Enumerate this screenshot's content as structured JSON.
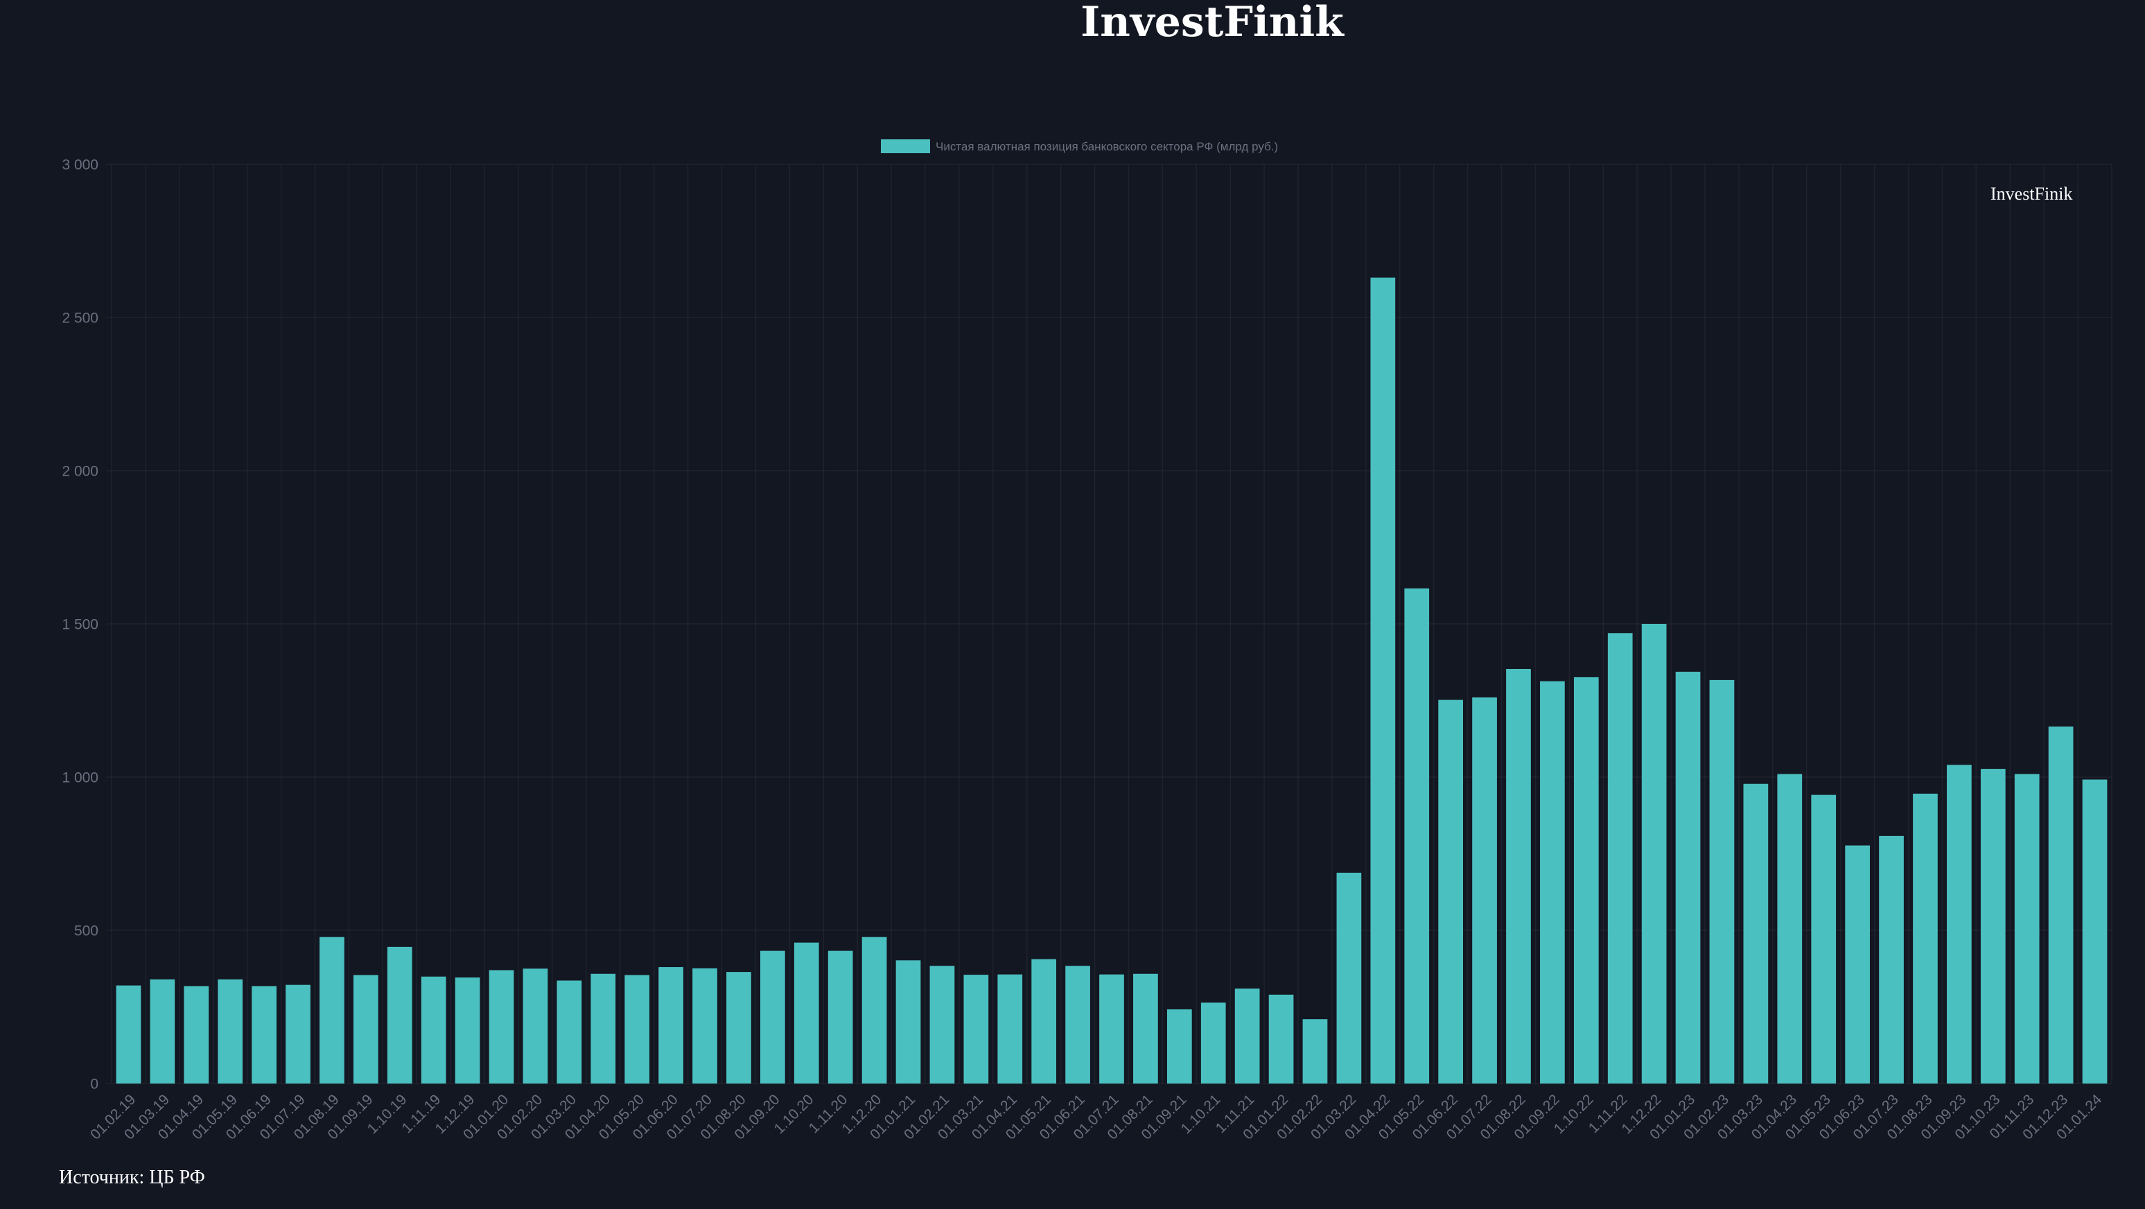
{
  "watermark": "InvestFinik",
  "footer": {
    "source": "Источник: ЦБ РФ"
  },
  "colors": {
    "background": "#131722",
    "bar": "#4bc0c0",
    "tick_text": "#6b7080"
  },
  "chart_data": {
    "type": "bar",
    "title": "InvestFinik",
    "categories": [
      "01.02.19",
      "01.03.19",
      "01.04.19",
      "01.05.19",
      "01.06.19",
      "01.07.19",
      "01.08.19",
      "01.09.19",
      "1.10.19",
      "1.11.19",
      "1.12.19",
      "01.01.20",
      "01.02.20",
      "01.03.20",
      "01.04.20",
      "01.05.20",
      "01.06.20",
      "01.07.20",
      "01.08.20",
      "01.09.20",
      "1.10.20",
      "1.11.20",
      "1.12.20",
      "01.01.21",
      "01.02.21",
      "01.03.21",
      "01.04.21",
      "01.05.21",
      "01.06.21",
      "01.07.21",
      "01.08.21",
      "01.09.21",
      "1.10.21",
      "1.11.21",
      "01.01.22",
      "01.02.22",
      "01.03.22",
      "01.04.22",
      "01.05.22",
      "01.06.22",
      "01.07.22",
      "01.08.22",
      "01.09.22",
      "1.10.22",
      "1.11.22",
      "1.12.22",
      "01.01.23",
      "01.02.23",
      "01.03.23",
      "01.04.23",
      "01.05.23",
      "01.06.23",
      "01.07.23",
      "01.08.23",
      "01.09.23",
      "01.10.23",
      "01.11.23",
      "01.12.23",
      "01.01.24"
    ],
    "series": [
      {
        "name": "Чистая валютная позиция банковского сектора РФ (млрд руб.)",
        "values": [
          320,
          340,
          318,
          340,
          318,
          322,
          478,
          354,
          446,
          349,
          346,
          370,
          375,
          336,
          358,
          354,
          380,
          376,
          364,
          433,
          460,
          433,
          478,
          402,
          384,
          355,
          356,
          406,
          384,
          356,
          358,
          242,
          264,
          310,
          290,
          210,
          688,
          2630,
          1616,
          1252,
          1260,
          1353,
          1313,
          1326,
          1470,
          1500,
          1344,
          1317,
          978,
          1010,
          942,
          777,
          808,
          946,
          1040,
          1027,
          1010,
          1165,
          992
        ]
      }
    ],
    "ylim": [
      0,
      3000
    ],
    "yticks": [
      0,
      500,
      1000,
      1500,
      2000,
      2500,
      3000
    ],
    "ytick_labels": [
      "0",
      "500",
      "1 000",
      "1 500",
      "2 000",
      "2 500",
      "3 000"
    ],
    "grid": true,
    "legend": "top-center"
  }
}
